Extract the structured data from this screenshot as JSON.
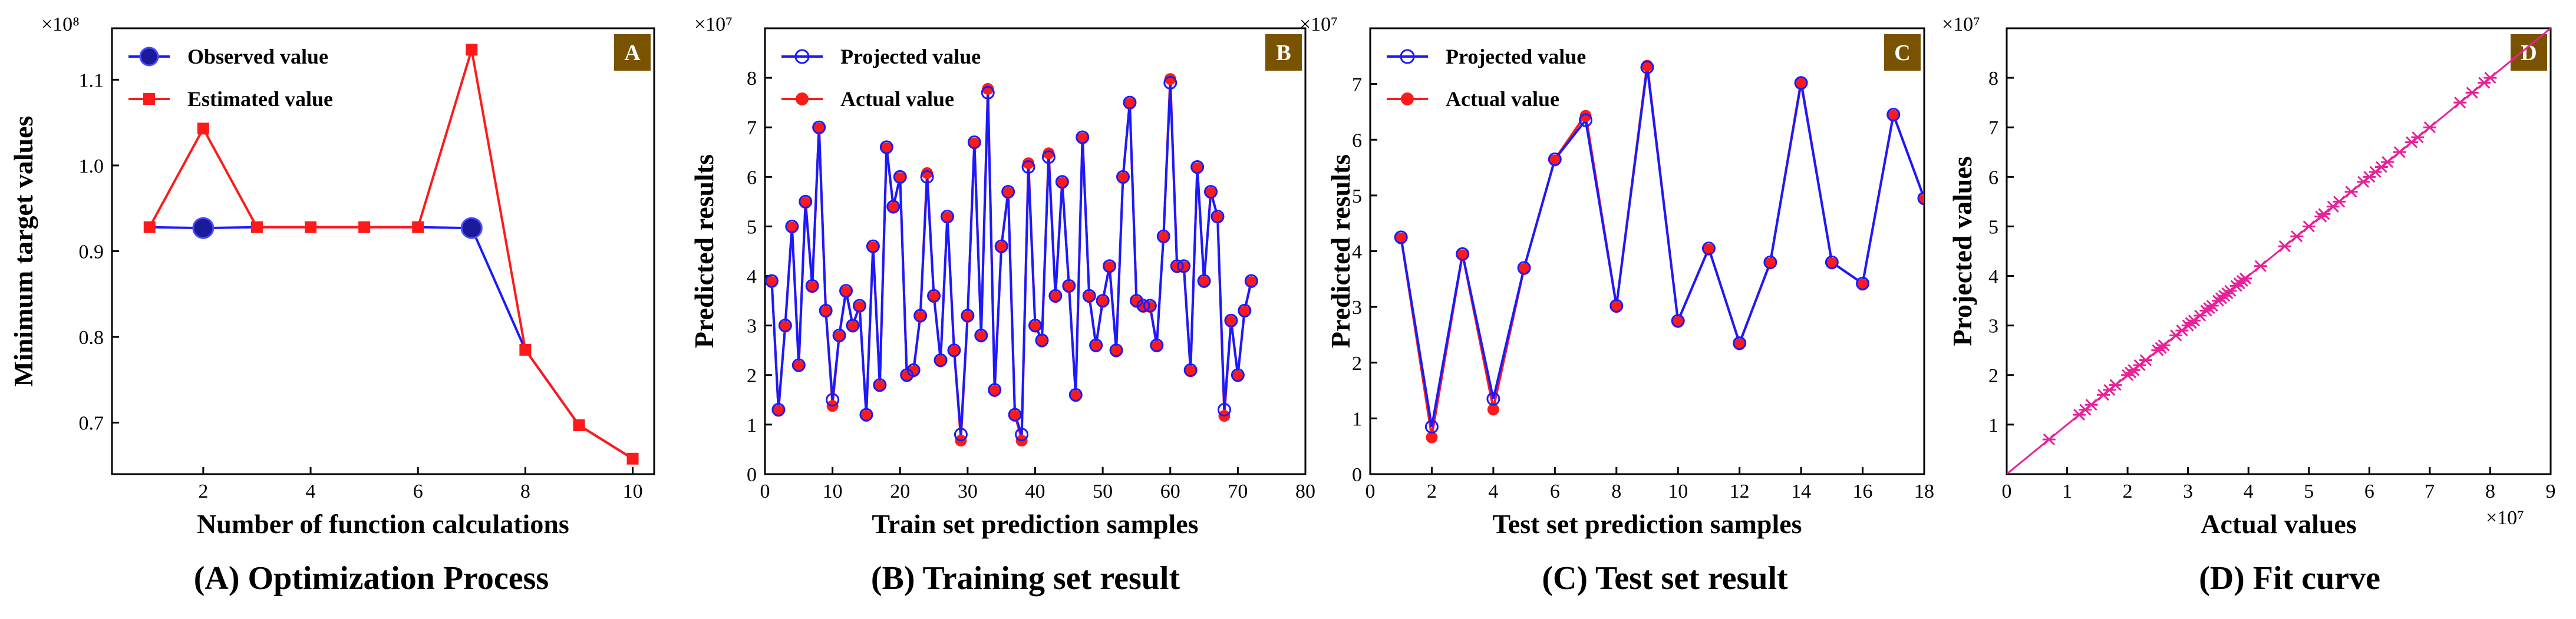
{
  "colors": {
    "blue": "#1a1aff",
    "red": "#ff1a1a",
    "badge": "#7a5300",
    "fit_line": "#e8209a"
  },
  "chart_data": [
    {
      "id": "A",
      "type": "line",
      "badge": "A",
      "caption": "(A) Optimization Process",
      "xlabel": "Number of function calculations",
      "ylabel": "Minimum target values",
      "exponent": "×10⁸",
      "xlim": [
        0.3,
        10.4
      ],
      "ylim": [
        0.64,
        1.16
      ],
      "xticks": [
        2,
        4,
        6,
        8,
        10
      ],
      "yticks": [
        0.7,
        0.8,
        0.9,
        1.0,
        1.1
      ],
      "ytick_labels": [
        "0.7",
        "0.8",
        "0.9",
        "1.0",
        "1.1"
      ],
      "x": [
        1,
        2,
        3,
        4,
        5,
        6,
        7,
        8,
        9,
        10
      ],
      "series": [
        {
          "name": "Observed value",
          "marker": "big-dot",
          "values": [
            0.928,
            0.927,
            0.928,
            0.928,
            0.928,
            0.928,
            0.927,
            0.785,
            0.697,
            0.658
          ],
          "show_markers": [
            false,
            true,
            false,
            false,
            false,
            false,
            true,
            false,
            false,
            false
          ]
        },
        {
          "name": "Estimated value",
          "marker": "square",
          "values": [
            0.928,
            1.043,
            0.928,
            0.928,
            0.928,
            0.928,
            1.135,
            0.785,
            0.697,
            0.658
          ]
        }
      ]
    },
    {
      "id": "B",
      "type": "line",
      "badge": "B",
      "caption": "(B) Training set result",
      "xlabel": "Train set prediction samples",
      "ylabel": "Predicted results",
      "exponent": "×10⁷",
      "xlim": [
        0,
        80
      ],
      "ylim": [
        0,
        9
      ],
      "xticks": [
        0,
        10,
        20,
        30,
        40,
        50,
        60,
        70,
        80
      ],
      "yticks": [
        0,
        1,
        2,
        3,
        4,
        5,
        6,
        7,
        8
      ],
      "series": [
        {
          "name": "Projected value",
          "marker": "open-circle",
          "values": [
            3.9,
            1.3,
            3.0,
            5.0,
            2.2,
            5.5,
            3.8,
            7.0,
            3.3,
            1.5,
            2.8,
            3.7,
            3.0,
            3.4,
            1.2,
            4.6,
            1.8,
            6.6,
            5.4,
            6.0,
            2.0,
            2.1,
            3.2,
            6.0,
            3.6,
            2.3,
            5.2,
            2.5,
            0.8,
            3.2,
            6.7,
            2.8,
            7.7,
            1.7,
            4.6,
            5.7,
            1.2,
            0.8,
            6.2,
            3.0,
            2.7,
            6.4,
            3.6,
            5.9,
            3.8,
            1.6,
            6.8,
            3.6,
            2.6,
            3.5,
            4.2,
            2.5,
            6.0,
            7.5,
            3.5,
            3.4,
            3.4,
            2.6,
            4.8,
            7.9,
            4.2,
            4.2,
            2.1,
            6.2,
            3.9,
            5.7,
            5.2,
            1.3,
            3.1,
            2.0,
            3.3,
            3.9
          ]
        },
        {
          "name": "Actual value",
          "marker": "filled-dot",
          "values": [
            3.9,
            1.3,
            3.0,
            5.0,
            2.2,
            5.5,
            3.8,
            7.0,
            3.3,
            1.4,
            2.8,
            3.7,
            3.0,
            3.4,
            1.2,
            4.6,
            1.8,
            6.6,
            5.4,
            6.0,
            2.0,
            2.1,
            3.2,
            6.1,
            3.6,
            2.3,
            5.2,
            2.5,
            0.7,
            3.2,
            6.7,
            2.8,
            7.8,
            1.7,
            4.6,
            5.7,
            1.2,
            0.7,
            6.3,
            3.0,
            2.7,
            6.5,
            3.6,
            5.9,
            3.8,
            1.6,
            6.8,
            3.6,
            2.6,
            3.5,
            4.2,
            2.5,
            6.0,
            7.5,
            3.5,
            3.4,
            3.4,
            2.6,
            4.8,
            8.0,
            4.2,
            4.2,
            2.1,
            6.2,
            3.9,
            5.7,
            5.2,
            1.2,
            3.1,
            2.0,
            3.3,
            3.9
          ]
        }
      ]
    },
    {
      "id": "C",
      "type": "line",
      "badge": "C",
      "caption": "(C) Test set result",
      "xlabel": "Test set prediction samples",
      "ylabel": "Predicted results",
      "exponent": "×10⁷",
      "xlim": [
        0,
        18
      ],
      "ylim": [
        0,
        8
      ],
      "xticks": [
        0,
        2,
        4,
        6,
        8,
        10,
        12,
        14,
        16,
        18
      ],
      "yticks": [
        0,
        1,
        2,
        3,
        4,
        5,
        6,
        7
      ],
      "x": [
        1,
        2,
        3,
        4,
        5,
        6,
        7,
        8,
        9,
        10,
        11,
        12,
        13,
        14,
        15,
        16,
        17,
        18
      ],
      "series": [
        {
          "name": "Projected value",
          "marker": "open-circle",
          "values": [
            4.25,
            0.85,
            3.95,
            1.35,
            3.7,
            5.65,
            6.35,
            3.02,
            7.3,
            2.75,
            4.05,
            2.35,
            3.8,
            7.02,
            3.8,
            3.42,
            6.45,
            4.95
          ]
        },
        {
          "name": "Actual value",
          "marker": "filled-dot",
          "values": [
            4.25,
            0.68,
            3.95,
            1.18,
            3.7,
            5.65,
            6.45,
            3.02,
            7.35,
            2.75,
            4.05,
            2.35,
            3.8,
            7.05,
            3.8,
            3.42,
            6.45,
            4.95
          ]
        }
      ]
    },
    {
      "id": "D",
      "type": "scatter",
      "badge": "D",
      "caption": "(D) Fit curve",
      "xlabel": "Actual values",
      "ylabel": "Projected values",
      "exponent_x": "×10⁷",
      "exponent_y": "×10⁷",
      "xlim": [
        0,
        9
      ],
      "ylim": [
        0,
        9
      ],
      "xticks": [
        0,
        1,
        2,
        3,
        4,
        5,
        6,
        7,
        8,
        9
      ],
      "yticks": [
        1,
        2,
        3,
        4,
        5,
        6,
        7,
        8
      ],
      "fit_line": [
        [
          0,
          0
        ],
        [
          9,
          9
        ]
      ],
      "points": [
        0.7,
        1.2,
        1.3,
        1.4,
        1.6,
        1.7,
        1.8,
        2.0,
        2.05,
        2.1,
        2.2,
        2.3,
        2.5,
        2.55,
        2.6,
        2.8,
        2.9,
        3.0,
        3.05,
        3.1,
        3.2,
        3.3,
        3.35,
        3.4,
        3.5,
        3.55,
        3.6,
        3.65,
        3.7,
        3.8,
        3.85,
        3.9,
        3.95,
        4.2,
        4.6,
        4.8,
        5.0,
        5.2,
        5.25,
        5.4,
        5.5,
        5.7,
        5.9,
        6.0,
        6.1,
        6.2,
        6.3,
        6.5,
        6.7,
        6.8,
        7.0,
        7.5,
        7.7,
        7.9,
        8.0
      ]
    }
  ]
}
